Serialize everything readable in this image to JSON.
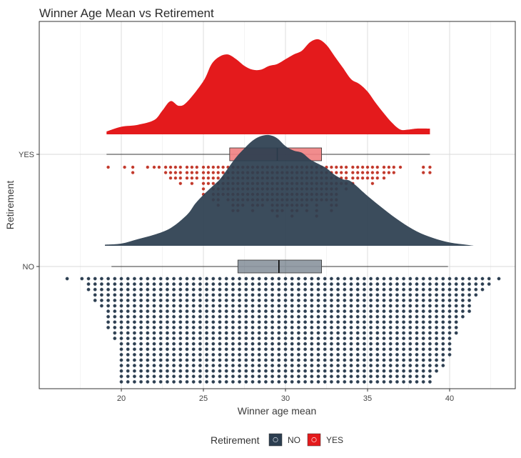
{
  "chart_data": {
    "type": "raincloud",
    "title": "Winner Age Mean vs Retirement",
    "xlabel": "Winner age mean",
    "ylabel": "Retirement",
    "xlim": [
      15,
      44
    ],
    "x_ticks": [
      20,
      25,
      30,
      35,
      40
    ],
    "categories": [
      "NO",
      "YES"
    ],
    "grid": true,
    "legend_position": "bottom",
    "legend_title": "Retirement",
    "series": [
      {
        "name": "NO",
        "color": "#2c3e50",
        "boxplot": {
          "min": 19.4,
          "q1": 27.1,
          "median": 29.6,
          "q3": 32.2,
          "max": 39.9
        },
        "density": {
          "x": [
            19.0,
            20.0,
            21.0,
            22.0,
            23.0,
            24.0,
            24.5,
            25.0,
            25.5,
            26.0,
            26.5,
            27.0,
            27.5,
            28.0,
            28.5,
            29.0,
            29.5,
            30.0,
            30.5,
            31.0,
            31.5,
            32.0,
            32.5,
            33.0,
            33.5,
            34.0,
            35.0,
            36.0,
            37.0,
            38.0,
            39.0,
            40.0,
            41.0,
            41.5
          ],
          "y": [
            0.01,
            0.02,
            0.06,
            0.1,
            0.16,
            0.28,
            0.38,
            0.46,
            0.53,
            0.6,
            0.7,
            0.8,
            0.88,
            0.95,
            0.99,
            1.0,
            0.97,
            0.9,
            0.86,
            0.84,
            0.78,
            0.74,
            0.7,
            0.64,
            0.6,
            0.58,
            0.45,
            0.33,
            0.22,
            0.13,
            0.07,
            0.03,
            0.01,
            0.0
          ]
        },
        "dot_histogram": {
          "x": [
            16.7,
            17.6,
            18.0,
            18.4,
            18.8,
            19.2,
            19.6,
            20.0,
            20.4,
            20.8,
            21.2,
            21.6,
            22.0,
            22.4,
            22.8,
            23.2,
            23.6,
            24.0,
            24.4,
            24.8,
            25.2,
            25.6,
            26.0,
            26.4,
            26.8,
            27.2,
            27.6,
            28.0,
            28.4,
            28.8,
            29.2,
            29.6,
            30.0,
            30.4,
            30.8,
            31.2,
            31.6,
            32.0,
            32.4,
            32.8,
            33.2,
            33.6,
            34.0,
            34.4,
            34.8,
            35.2,
            35.6,
            36.0,
            36.4,
            36.8,
            37.2,
            37.6,
            38.0,
            38.4,
            38.8,
            39.2,
            39.6,
            40.0,
            40.4,
            40.8,
            41.2,
            41.6,
            42.0,
            42.4,
            43.0
          ],
          "count": [
            1,
            1,
            3,
            5,
            6,
            10,
            12,
            20,
            20,
            20,
            20,
            20,
            20,
            20,
            20,
            20,
            20,
            20,
            20,
            20,
            20,
            20,
            20,
            20,
            20,
            20,
            20,
            20,
            20,
            20,
            20,
            20,
            20,
            20,
            20,
            20,
            20,
            20,
            20,
            20,
            20,
            20,
            20,
            20,
            20,
            20,
            20,
            20,
            20,
            20,
            20,
            20,
            20,
            20,
            20,
            18,
            17,
            15,
            11,
            8,
            7,
            4,
            3,
            2,
            1
          ]
        }
      },
      {
        "name": "YES",
        "color": "#e41a1c",
        "boxplot": {
          "min": 19.1,
          "q1": 26.6,
          "median": 29.5,
          "q3": 32.2,
          "max": 38.8
        },
        "density": {
          "x": [
            19.1,
            20.0,
            21.0,
            22.0,
            22.5,
            23.0,
            23.5,
            24.0,
            25.0,
            25.5,
            26.0,
            26.5,
            27.0,
            27.5,
            28.0,
            28.5,
            29.0,
            29.5,
            30.0,
            30.5,
            31.0,
            31.5,
            32.0,
            32.5,
            33.0,
            33.5,
            34.0,
            34.5,
            35.0,
            35.5,
            36.0,
            36.5,
            37.0,
            37.5,
            38.0,
            38.8
          ],
          "y": [
            0.03,
            0.08,
            0.1,
            0.15,
            0.25,
            0.35,
            0.3,
            0.34,
            0.56,
            0.74,
            0.82,
            0.84,
            0.79,
            0.72,
            0.68,
            0.68,
            0.72,
            0.74,
            0.79,
            0.84,
            0.88,
            0.97,
            1.0,
            0.94,
            0.82,
            0.7,
            0.58,
            0.53,
            0.45,
            0.33,
            0.22,
            0.12,
            0.05,
            0.05,
            0.06,
            0.06
          ]
        },
        "dot_histogram": {
          "x": [
            19.2,
            20.2,
            20.7,
            21.6,
            22.0,
            22.3,
            22.7,
            23.0,
            23.3,
            23.6,
            24.0,
            24.3,
            24.6,
            25.0,
            25.3,
            25.6,
            25.9,
            26.2,
            26.5,
            26.8,
            27.1,
            27.4,
            27.7,
            28.0,
            28.3,
            28.6,
            28.9,
            29.2,
            29.5,
            29.8,
            30.1,
            30.4,
            30.7,
            31.0,
            31.3,
            31.6,
            31.9,
            32.2,
            32.5,
            32.8,
            33.1,
            33.4,
            33.7,
            34.1,
            34.4,
            34.7,
            35.0,
            35.3,
            35.6,
            36.0,
            36.3,
            36.6,
            37.0,
            38.4,
            38.8
          ],
          "count": [
            1,
            1,
            2,
            1,
            1,
            1,
            2,
            3,
            3,
            4,
            3,
            4,
            3,
            6,
            4,
            7,
            8,
            6,
            7,
            9,
            9,
            8,
            7,
            9,
            8,
            8,
            7,
            9,
            10,
            9,
            8,
            10,
            9,
            8,
            9,
            7,
            10,
            7,
            7,
            9,
            8,
            4,
            5,
            4,
            3,
            3,
            3,
            4,
            3,
            3,
            2,
            2,
            1,
            2,
            2
          ]
        }
      }
    ]
  }
}
